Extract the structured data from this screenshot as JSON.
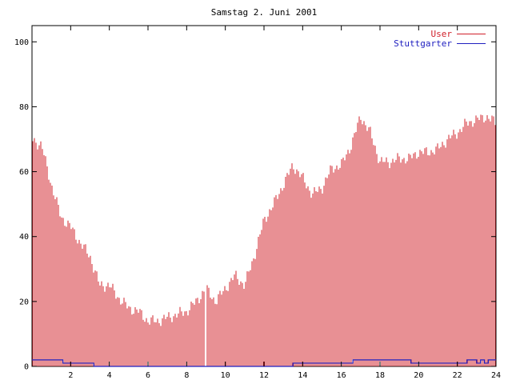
{
  "chart_data": {
    "type": "bar",
    "title": "Samstag 2. Juni 2001",
    "xlim": [
      0,
      24
    ],
    "ylim": [
      0,
      105
    ],
    "x_ticks": [
      2,
      4,
      6,
      8,
      10,
      12,
      14,
      16,
      18,
      20,
      22,
      24
    ],
    "y_ticks": [
      0,
      20,
      40,
      60,
      80,
      100
    ],
    "grid": false,
    "legend_position": "top-right",
    "series": [
      {
        "name": "User",
        "color": "#d0202a",
        "style": "impulses",
        "x": [
          0,
          0.5,
          1,
          1.5,
          2,
          2.5,
          3,
          3.5,
          4,
          4.5,
          5,
          5.5,
          6,
          6.5,
          7,
          7.5,
          8,
          8.5,
          9,
          9.5,
          10,
          10.5,
          11,
          11.5,
          12,
          12.5,
          13,
          13.5,
          14,
          14.5,
          15,
          15.5,
          16,
          16.5,
          17,
          17.5,
          18,
          18.5,
          19,
          19.5,
          20,
          20.5,
          21,
          21.5,
          22,
          22.5,
          23,
          23.5,
          24
        ],
        "y": [
          70,
          68,
          56,
          46,
          43,
          38,
          34,
          25,
          25,
          21,
          18,
          17,
          14,
          14,
          15,
          16,
          17,
          20,
          24,
          20,
          24,
          28,
          25,
          34,
          45,
          50,
          56,
          62,
          58,
          53,
          55,
          61,
          62,
          68,
          77,
          72,
          63,
          63,
          64,
          64,
          66,
          66,
          67,
          70,
          72,
          75,
          76,
          77,
          75
        ]
      },
      {
        "name": "Stuttgarter",
        "color": "#2020c0",
        "style": "steps",
        "x": [
          0,
          1.5,
          1.6,
          3.1,
          3.2,
          13.5,
          16.6,
          19.6,
          22,
          22.5,
          23,
          23.2,
          23.4,
          23.6,
          24
        ],
        "y": [
          2,
          2,
          1,
          1,
          0,
          1,
          2,
          1,
          1,
          2,
          1,
          2,
          1,
          2,
          2
        ]
      }
    ]
  }
}
